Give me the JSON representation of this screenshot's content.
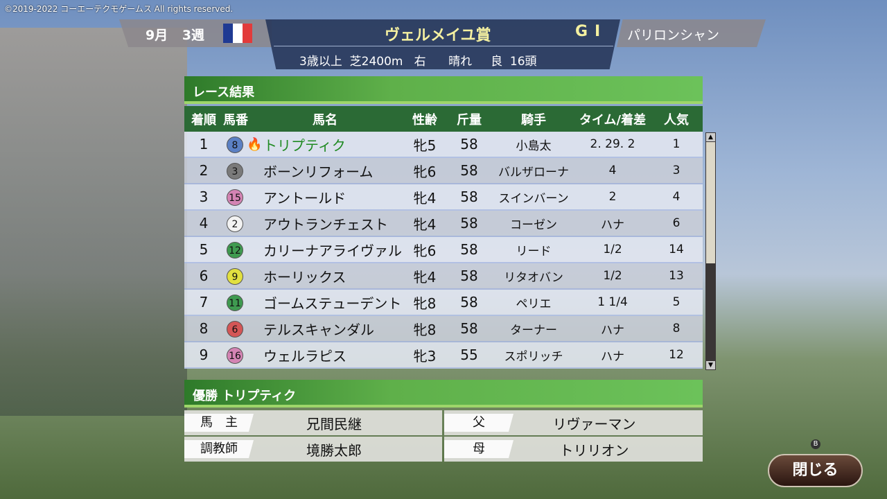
{
  "copyright": "©2019-2022 コーエーテクモゲームス All rights reserved.",
  "header": {
    "date": "9月 3週",
    "flag": "france-flag",
    "race_name": "ヴェルメイユ賞",
    "grade": "GI",
    "venue": "パリロンシャン",
    "conditions": "3歳以上  芝2400m   右      晴れ     良  16頭"
  },
  "results": {
    "title": "レース結果",
    "columns": [
      "着順",
      "馬番",
      "馬名",
      "性齢",
      "斤量",
      "騎手",
      "タイム/着差",
      "人気"
    ],
    "rows": [
      {
        "pos": "1",
        "num": "8",
        "color": "#5b80c4",
        "name": "トリプティク",
        "sexage": "牝5",
        "weight": "58",
        "jockey": "小島太",
        "margin": "2. 29. 2",
        "pop": "1"
      },
      {
        "pos": "2",
        "num": "3",
        "color": "#7a7a7a",
        "name": "ボーンリフォーム",
        "sexage": "牝6",
        "weight": "58",
        "jockey": "バルザローナ",
        "margin": "4",
        "pop": "3"
      },
      {
        "pos": "3",
        "num": "15",
        "color": "#d484b4",
        "name": "アントールド",
        "sexage": "牝4",
        "weight": "58",
        "jockey": "スインバーン",
        "margin": "2",
        "pop": "4"
      },
      {
        "pos": "4",
        "num": "2",
        "color": "#f2f2f2",
        "name": "アウトランチェスト",
        "sexage": "牝4",
        "weight": "58",
        "jockey": "コーゼン",
        "margin": "ハナ",
        "pop": "6"
      },
      {
        "pos": "5",
        "num": "12",
        "color": "#3f9a50",
        "name": "カリーナアライヴァル",
        "sexage": "牝6",
        "weight": "58",
        "jockey": "リード",
        "margin": "1/2",
        "pop": "14"
      },
      {
        "pos": "6",
        "num": "9",
        "color": "#e2e040",
        "name": "ホーリックス",
        "sexage": "牝4",
        "weight": "58",
        "jockey": "リタオバン",
        "margin": "1/2",
        "pop": "13"
      },
      {
        "pos": "7",
        "num": "11",
        "color": "#3f9a50",
        "name": "ゴームステューデント",
        "sexage": "牝8",
        "weight": "58",
        "jockey": "ペリエ",
        "margin": "1 1/4",
        "pop": "5"
      },
      {
        "pos": "8",
        "num": "6",
        "color": "#d45656",
        "name": "テルスキャンダル",
        "sexage": "牝8",
        "weight": "58",
        "jockey": "ターナー",
        "margin": "ハナ",
        "pop": "8"
      },
      {
        "pos": "9",
        "num": "16",
        "color": "#d484b4",
        "name": "ウェルラピス",
        "sexage": "牝3",
        "weight": "55",
        "jockey": "スポリッチ",
        "margin": "ハナ",
        "pop": "12"
      }
    ]
  },
  "winner": {
    "title": "優勝 トリプティク",
    "owner_label": "馬　主",
    "owner": "兄間民継",
    "trainer_label": "調教師",
    "trainer": "境勝太郎",
    "sire_label": "父",
    "sire": "リヴァーマン",
    "dam_label": "母",
    "dam": "トリリオン"
  },
  "close_button": {
    "label": "閉じる",
    "key": "B"
  }
}
